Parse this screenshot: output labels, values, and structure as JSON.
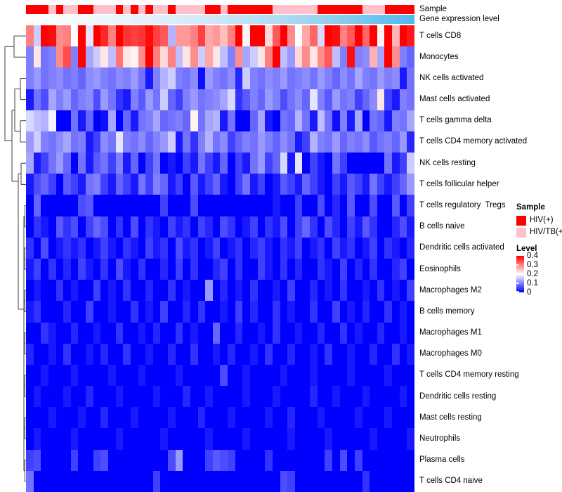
{
  "figure": {
    "background": "#FFFFFF"
  },
  "chart_data": {
    "type": "heatmap",
    "title": "",
    "n_cols": 52,
    "column_labels_shown": false,
    "rows": [
      "T cells CD8",
      "Monocytes",
      "NK cells activated",
      "Mast cells activated",
      "T cells gamma delta",
      "T cells CD4 memory activated",
      "NK cells resting",
      "T cells follicular helper",
      "T cells regulatory  Tregs",
      "B cells naive",
      "Dendritic cells activated",
      "Eosinophils",
      "Macrophages M2",
      "B cells memory",
      "Macrophages M1",
      "Macrophages M0",
      "T cells CD4 memory resting",
      "Dendritic cells resting",
      "Mast cells resting",
      "Neutrophils",
      "Plasma cells",
      "T cells CD4 naive"
    ],
    "value_scale": {
      "min": 0,
      "mid": 0.2,
      "max": 0.4,
      "colors": [
        "#0000FF",
        "#FFFFFF",
        "#FF0000"
      ]
    },
    "col_annotations": {
      "sample": {
        "label": "Sample",
        "color_map": {
          "HIV(+)": "#FF0000",
          "HIV/TB(+)": "#FFC0CB"
        },
        "values": [
          "HIV(+)",
          "HIV(+)",
          "HIV(+)",
          "HIV/TB(+)",
          "HIV(+)",
          "HIV/TB(+)",
          "HIV/TB(+)",
          "HIV(+)",
          "HIV(+)",
          "HIV/TB(+)",
          "HIV/TB(+)",
          "HIV/TB(+)",
          "HIV(+)",
          "HIV/TB(+)",
          "HIV(+)",
          "HIV/TB(+)",
          "HIV(+)",
          "HIV/TB(+)",
          "HIV/TB(+)",
          "HIV(+)",
          "HIV/TB(+)",
          "HIV/TB(+)",
          "HIV/TB(+)",
          "HIV/TB(+)",
          "HIV(+)",
          "HIV(+)",
          "HIV/TB(+)",
          "HIV(+)",
          "HIV(+)",
          "HIV(+)",
          "HIV(+)",
          "HIV(+)",
          "HIV(+)",
          "HIV/TB(+)",
          "HIV/TB(+)",
          "HIV/TB(+)",
          "HIV/TB(+)",
          "HIV/TB(+)",
          "HIV/TB(+)",
          "HIV(+)",
          "HIV(+)",
          "HIV(+)",
          "HIV(+)",
          "HIV(+)",
          "HIV(+)",
          "HIV/TB(+)",
          "HIV/TB(+)",
          "HIV/TB(+)",
          "HIV(+)",
          "HIV(+)",
          "HIV(+)",
          "HIV(+)"
        ]
      },
      "gene_expression_level": {
        "label": "Gene expression level",
        "gradient_stops": [
          "#FFFFFF",
          "#EAF4FB",
          "#CDE7F7",
          "#9BD3F0",
          "#4FB9EC"
        ]
      }
    },
    "values": [
      [
        0.3,
        0.16,
        0.4,
        0.39,
        0.29,
        0.3,
        0.2,
        0.4,
        0.18,
        0.4,
        0.37,
        0.3,
        0.4,
        0.36,
        0.35,
        0.36,
        0.39,
        0.35,
        0.33,
        0.14,
        0.28,
        0.28,
        0.3,
        0.35,
        0.27,
        0.28,
        0.25,
        0.3,
        0.4,
        0.21,
        0.4,
        0.4,
        0.23,
        0.33,
        0.4,
        0.29,
        0.2,
        0.27,
        0.32,
        0.17,
        0.4,
        0.39,
        0.3,
        0.33,
        0.4,
        0.32,
        0.4,
        0.21,
        0.4,
        0.26,
        0.4,
        0.38
      ],
      [
        0.1,
        0.22,
        0.09,
        0.1,
        0.29,
        0.34,
        0.1,
        0.4,
        0.13,
        0.16,
        0.22,
        0.15,
        0.31,
        0.22,
        0.21,
        0.29,
        0.4,
        0.3,
        0.23,
        0.3,
        0.15,
        0.22,
        0.29,
        0.16,
        0.27,
        0.22,
        0.15,
        0.1,
        0.29,
        0.13,
        0.16,
        0.22,
        0.3,
        0.4,
        0.15,
        0.12,
        0.23,
        0.29,
        0.22,
        0.29,
        0.33,
        0.15,
        0.1,
        0.39,
        0.1,
        0.11,
        0.26,
        0.13,
        0.4,
        0.29,
        0.1,
        0.08
      ],
      [
        0.1,
        0.12,
        0.09,
        0.1,
        0.11,
        0.09,
        0.1,
        0.08,
        0.11,
        0.12,
        0.1,
        0.09,
        0.11,
        0.1,
        0.12,
        0.09,
        0.02,
        0.1,
        0.14,
        0.16,
        0.1,
        0.09,
        0.11,
        0.01,
        0.12,
        0.1,
        0.09,
        0.11,
        0.03,
        0.16,
        0.1,
        0.09,
        0.11,
        0.1,
        0.12,
        0.09,
        0.1,
        0.11,
        0.09,
        0.12,
        0.1,
        0.08,
        0.11,
        0.09,
        0.13,
        0.1,
        0.09,
        0.12,
        0.1,
        0.11,
        0.02,
        0.09
      ],
      [
        0.02,
        0.09,
        0.06,
        0.13,
        0.1,
        0.12,
        0.08,
        0.1,
        0.11,
        0.06,
        0.12,
        0.09,
        0.04,
        0.02,
        0.1,
        0.07,
        0.12,
        0.09,
        0.16,
        0.08,
        0.05,
        0.1,
        0.12,
        0.09,
        0.1,
        0.11,
        0.13,
        0.17,
        0.04,
        0.07,
        0.1,
        0.08,
        0.12,
        0.1,
        0.06,
        0.09,
        0.11,
        0.08,
        0.18,
        0.1,
        0.07,
        0.12,
        0.09,
        0.1,
        0.05,
        0.08,
        0.11,
        0.22,
        0.05,
        0.02,
        0.1,
        0.09
      ],
      [
        0.17,
        0.15,
        0.14,
        0.19,
        0.0,
        0.0,
        0.09,
        0.02,
        0.08,
        0.0,
        0.01,
        0.13,
        0.0,
        0.08,
        0.02,
        0.09,
        0.1,
        0.13,
        0.08,
        0.09,
        0.1,
        0.08,
        0.21,
        0.09,
        0.13,
        0.14,
        0.02,
        0.09,
        0.0,
        0.0,
        0.08,
        0.13,
        0.02,
        0.0,
        0.09,
        0.08,
        0.14,
        0.09,
        0.02,
        0.15,
        0.09,
        0.01,
        0.1,
        0.02,
        0.13,
        0.0,
        0.09,
        0.08,
        0.02,
        0.1,
        0.09,
        0.13
      ],
      [
        0.12,
        0.16,
        0.1,
        0.09,
        0.11,
        0.13,
        0.09,
        0.1,
        0.02,
        0.05,
        0.11,
        0.09,
        0.18,
        0.1,
        0.09,
        0.11,
        0.08,
        0.1,
        0.12,
        0.16,
        0.02,
        0.09,
        0.04,
        0.1,
        0.14,
        0.09,
        0.11,
        0.05,
        0.08,
        0.1,
        0.09,
        0.12,
        0.1,
        0.08,
        0.11,
        0.09,
        0.02,
        0.05,
        0.14,
        0.1,
        0.09,
        0.12,
        0.08,
        0.1,
        0.09,
        0.11,
        0.07,
        0.09,
        0.1,
        0.08,
        0.12,
        0.03
      ],
      [
        0.13,
        0.02,
        0.05,
        0.09,
        0.12,
        0.08,
        0.0,
        0.09,
        0.02,
        0.07,
        0.09,
        0.05,
        0.1,
        0.02,
        0.08,
        0.0,
        0.05,
        0.09,
        0.0,
        0.02,
        0.0,
        0.05,
        0.02,
        0.09,
        0.05,
        0.02,
        0.08,
        0.0,
        0.05,
        0.02,
        0.09,
        0.12,
        0.05,
        0.08,
        0.17,
        0.02,
        0.18,
        0.0,
        0.05,
        0.02,
        0.0,
        0.09,
        0.05,
        0.0,
        0.0,
        0.0,
        0.0,
        0.0,
        0.09,
        0.02,
        0.05,
        0.16
      ],
      [
        0.02,
        0.06,
        0.08,
        0.05,
        0.0,
        0.07,
        0.05,
        0.02,
        0.09,
        0.1,
        0.05,
        0.02,
        0.08,
        0.05,
        0.02,
        0.09,
        0.05,
        0.1,
        0.08,
        0.02,
        0.05,
        0.0,
        0.07,
        0.02,
        0.05,
        0.08,
        0.02,
        0.0,
        0.05,
        0.09,
        0.02,
        0.05,
        0.0,
        0.02,
        0.07,
        0.05,
        0.02,
        0.08,
        0.05,
        0.02,
        0.0,
        0.05,
        0.02,
        0.07,
        0.05,
        0.02,
        0.09,
        0.05,
        0.02,
        0.05,
        0.08,
        0.12
      ],
      [
        0.0,
        0.08,
        0.0,
        0.0,
        0.0,
        0.0,
        0.0,
        0.06,
        0.07,
        0.0,
        0.0,
        0.0,
        0.0,
        0.0,
        0.0,
        0.0,
        0.0,
        0.0,
        0.05,
        0.0,
        0.0,
        0.0,
        0.06,
        0.0,
        0.0,
        0.0,
        0.0,
        0.0,
        0.0,
        0.0,
        0.0,
        0.0,
        0.0,
        0.02,
        0.0,
        0.0,
        0.05,
        0.0,
        0.0,
        0.06,
        0.0,
        0.03,
        0.0,
        0.07,
        0.0,
        0.0,
        0.06,
        0.0,
        0.0,
        0.07,
        0.0,
        0.05
      ],
      [
        0.0,
        0.04,
        0.02,
        0.0,
        0.07,
        0.04,
        0.06,
        0.0,
        0.05,
        0.08,
        0.06,
        0.0,
        0.04,
        0.0,
        0.06,
        0.0,
        0.04,
        0.02,
        0.0,
        0.05,
        0.02,
        0.04,
        0.0,
        0.05,
        0.03,
        0.0,
        0.06,
        0.04,
        0.0,
        0.02,
        0.05,
        0.0,
        0.04,
        0.02,
        0.06,
        0.0,
        0.05,
        0.08,
        0.04,
        0.0,
        0.06,
        0.03,
        0.0,
        0.05,
        0.02,
        0.07,
        0.04,
        0.0,
        0.0,
        0.03,
        0.06,
        0.02
      ],
      [
        0.04,
        0.0,
        0.06,
        0.0,
        0.02,
        0.04,
        0.02,
        0.04,
        0.0,
        0.02,
        0.05,
        0.02,
        0.0,
        0.04,
        0.02,
        0.0,
        0.05,
        0.02,
        0.04,
        0.0,
        0.06,
        0.02,
        0.04,
        0.0,
        0.02,
        0.05,
        0.0,
        0.02,
        0.04,
        0.0,
        0.03,
        0.05,
        0.02,
        0.0,
        0.04,
        0.02,
        0.05,
        0.0,
        0.02,
        0.04,
        0.0,
        0.05,
        0.02,
        0.04,
        0.0,
        0.02,
        0.05,
        0.0,
        0.04,
        0.02,
        0.0,
        0.03
      ],
      [
        0.02,
        0.05,
        0.0,
        0.04,
        0.0,
        0.03,
        0.0,
        0.05,
        0.02,
        0.0,
        0.04,
        0.0,
        0.06,
        0.02,
        0.0,
        0.04,
        0.0,
        0.0,
        0.03,
        0.0,
        0.05,
        0.0,
        0.04,
        0.0,
        0.0,
        0.03,
        0.05,
        0.0,
        0.04,
        0.0,
        0.0,
        0.05,
        0.02,
        0.0,
        0.04,
        0.0,
        0.03,
        0.0,
        0.0,
        0.04,
        0.02,
        0.0,
        0.05,
        0.0,
        0.03,
        0.0,
        0.04,
        0.0,
        0.0,
        0.03,
        0.05,
        0.0
      ],
      [
        0.0,
        0.02,
        0.0,
        0.0,
        0.04,
        0.0,
        0.02,
        0.0,
        0.0,
        0.05,
        0.0,
        0.02,
        0.0,
        0.04,
        0.0,
        0.0,
        0.03,
        0.0,
        0.0,
        0.04,
        0.0,
        0.02,
        0.0,
        0.0,
        0.12,
        0.0,
        0.03,
        0.0,
        0.02,
        0.0,
        0.04,
        0.0,
        0.0,
        0.02,
        0.0,
        0.05,
        0.0,
        0.0,
        0.03,
        0.0,
        0.02,
        0.0,
        0.04,
        0.0,
        0.0,
        0.02,
        0.0,
        0.04,
        0.0,
        0.02,
        0.0,
        0.05
      ],
      [
        0.02,
        0.04,
        0.0,
        0.0,
        0.0,
        0.03,
        0.0,
        0.0,
        0.05,
        0.0,
        0.0,
        0.02,
        0.0,
        0.0,
        0.04,
        0.0,
        0.02,
        0.0,
        0.05,
        0.0,
        0.0,
        0.03,
        0.0,
        0.04,
        0.0,
        0.0,
        0.02,
        0.0,
        0.05,
        0.0,
        0.03,
        0.0,
        0.0,
        0.04,
        0.0,
        0.02,
        0.0,
        0.0,
        0.04,
        0.0,
        0.0,
        0.05,
        0.0,
        0.02,
        0.0,
        0.03,
        0.0,
        0.0,
        0.04,
        0.0,
        0.02,
        0.0
      ],
      [
        0.0,
        0.0,
        0.04,
        0.02,
        0.0,
        0.0,
        0.03,
        0.0,
        0.0,
        0.02,
        0.0,
        0.0,
        0.04,
        0.0,
        0.0,
        0.02,
        0.0,
        0.03,
        0.0,
        0.0,
        0.04,
        0.0,
        0.02,
        0.0,
        0.0,
        0.08,
        0.0,
        0.0,
        0.03,
        0.0,
        0.0,
        0.02,
        0.0,
        0.04,
        0.0,
        0.0,
        0.02,
        0.0,
        0.0,
        0.03,
        0.0,
        0.0,
        0.04,
        0.0,
        0.02,
        0.0,
        0.0,
        0.03,
        0.0,
        0.0,
        0.02,
        0.0
      ],
      [
        0.03,
        0.0,
        0.0,
        0.02,
        0.0,
        0.04,
        0.0,
        0.0,
        0.02,
        0.0,
        0.03,
        0.0,
        0.0,
        0.04,
        0.0,
        0.0,
        0.02,
        0.0,
        0.0,
        0.03,
        0.0,
        0.0,
        0.04,
        0.0,
        0.0,
        0.02,
        0.0,
        0.03,
        0.0,
        0.0,
        0.02,
        0.0,
        0.04,
        0.0,
        0.0,
        0.03,
        0.0,
        0.0,
        0.02,
        0.0,
        0.04,
        0.0,
        0.0,
        0.02,
        0.0,
        0.0,
        0.03,
        0.0,
        0.0,
        0.04,
        0.0,
        0.02
      ],
      [
        0.0,
        0.0,
        0.02,
        0.0,
        0.0,
        0.0,
        0.02,
        0.0,
        0.0,
        0.0,
        0.0,
        0.02,
        0.0,
        0.0,
        0.0,
        0.02,
        0.0,
        0.0,
        0.0,
        0.0,
        0.02,
        0.0,
        0.0,
        0.0,
        0.0,
        0.0,
        0.06,
        0.0,
        0.0,
        0.02,
        0.0,
        0.0,
        0.0,
        0.0,
        0.02,
        0.0,
        0.0,
        0.0,
        0.02,
        0.0,
        0.0,
        0.0,
        0.0,
        0.02,
        0.0,
        0.0,
        0.0,
        0.0,
        0.02,
        0.0,
        0.0,
        0.0
      ],
      [
        0.0,
        0.02,
        0.0,
        0.0,
        0.0,
        0.02,
        0.0,
        0.0,
        0.03,
        0.0,
        0.0,
        0.0,
        0.02,
        0.0,
        0.0,
        0.0,
        0.0,
        0.02,
        0.0,
        0.0,
        0.0,
        0.03,
        0.0,
        0.0,
        0.02,
        0.0,
        0.0,
        0.0,
        0.0,
        0.02,
        0.0,
        0.0,
        0.0,
        0.02,
        0.0,
        0.0,
        0.0,
        0.0,
        0.03,
        0.0,
        0.0,
        0.02,
        0.0,
        0.0,
        0.0,
        0.02,
        0.0,
        0.0,
        0.0,
        0.0,
        0.02,
        0.0
      ],
      [
        0.0,
        0.0,
        0.0,
        0.02,
        0.0,
        0.0,
        0.0,
        0.02,
        0.0,
        0.0,
        0.03,
        0.0,
        0.0,
        0.0,
        0.02,
        0.0,
        0.0,
        0.0,
        0.0,
        0.02,
        0.0,
        0.0,
        0.0,
        0.03,
        0.0,
        0.0,
        0.0,
        0.02,
        0.0,
        0.0,
        0.0,
        0.0,
        0.02,
        0.0,
        0.0,
        0.03,
        0.0,
        0.0,
        0.0,
        0.02,
        0.0,
        0.0,
        0.0,
        0.0,
        0.02,
        0.0,
        0.0,
        0.0,
        0.02,
        0.0,
        0.0,
        0.0
      ],
      [
        0.0,
        0.02,
        0.0,
        0.0,
        0.0,
        0.0,
        0.02,
        0.0,
        0.0,
        0.0,
        0.0,
        0.0,
        0.02,
        0.0,
        0.0,
        0.0,
        0.0,
        0.0,
        0.02,
        0.0,
        0.0,
        0.0,
        0.0,
        0.0,
        0.02,
        0.0,
        0.0,
        0.0,
        0.0,
        0.02,
        0.0,
        0.0,
        0.0,
        0.0,
        0.0,
        0.02,
        0.0,
        0.0,
        0.0,
        0.0,
        0.02,
        0.0,
        0.0,
        0.0,
        0.0,
        0.0,
        0.02,
        0.0,
        0.0,
        0.0,
        0.0,
        0.02
      ],
      [
        0.05,
        0.06,
        0.0,
        0.0,
        0.0,
        0.0,
        0.05,
        0.0,
        0.0,
        0.05,
        0.06,
        0.0,
        0.0,
        0.0,
        0.0,
        0.0,
        0.0,
        0.0,
        0.0,
        0.06,
        0.12,
        0.0,
        0.0,
        0.0,
        0.05,
        0.07,
        0.06,
        0.05,
        0.0,
        0.0,
        0.0,
        0.0,
        0.04,
        0.0,
        0.0,
        0.0,
        0.0,
        0.0,
        0.0,
        0.0,
        0.05,
        0.0,
        0.06,
        0.0,
        0.05,
        0.0,
        0.0,
        0.0,
        0.0,
        0.0,
        0.0,
        0.0
      ],
      [
        0.09,
        0.0,
        0.0,
        0.0,
        0.0,
        0.0,
        0.0,
        0.0,
        0.0,
        0.0,
        0.0,
        0.0,
        0.0,
        0.0,
        0.0,
        0.0,
        0.0,
        0.05,
        0.0,
        0.0,
        0.0,
        0.0,
        0.0,
        0.0,
        0.0,
        0.0,
        0.0,
        0.0,
        0.0,
        0.0,
        0.0,
        0.0,
        0.0,
        0.0,
        0.06,
        0.05,
        0.0,
        0.0,
        0.0,
        0.0,
        0.0,
        0.0,
        0.0,
        0.0,
        0.0,
        0.04,
        0.0,
        0.0,
        0.0,
        0.0,
        0.0,
        0.0
      ]
    ]
  },
  "legend": {
    "sample": {
      "title": "Sample",
      "items": [
        {
          "label": "HIV(+)",
          "color": "#FF0000"
        },
        {
          "label": "HIV/TB(+)",
          "color": "#FFC0CB"
        }
      ]
    },
    "level": {
      "title": "Level",
      "ticks": [
        "0.4",
        "0.3",
        "0.2",
        "0.1",
        "0"
      ],
      "gradient_colors": [
        "#FF0000",
        "#FFFFFF",
        "#0000FF"
      ]
    }
  }
}
